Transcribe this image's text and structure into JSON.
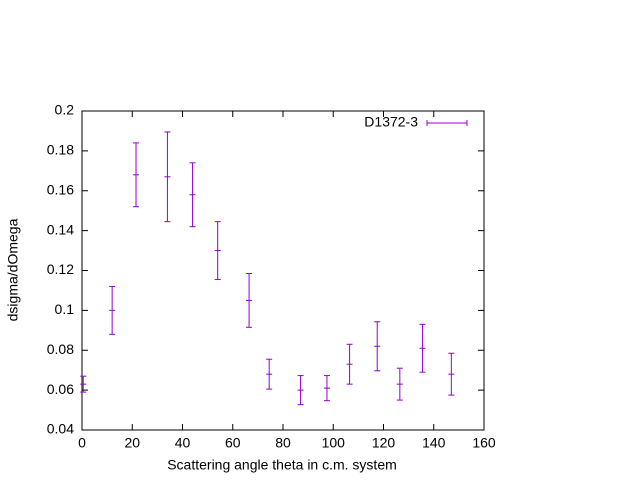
{
  "chart_data": {
    "type": "errorbar",
    "x_label": "Scattering angle theta in c.m. system",
    "y_label": "dsigma/dOmega",
    "x": [
      0.5,
      12,
      21.5,
      34,
      44,
      54,
      66.5,
      74.5,
      87,
      97.5,
      106.5,
      117.5,
      126.5,
      135.5,
      147
    ],
    "series": [
      {
        "name": "D1372-3",
        "color": "#9400d3",
        "values": [
          0.063,
          0.1,
          0.168,
          0.167,
          0.158,
          0.13,
          0.105,
          0.068,
          0.06,
          0.061,
          0.073,
          0.082,
          0.063,
          0.081,
          0.068
        ],
        "errors": [
          0.004,
          0.012,
          0.016,
          0.0225,
          0.016,
          0.0145,
          0.0135,
          0.0075,
          0.0073,
          0.0063,
          0.01,
          0.0123,
          0.008,
          0.012,
          0.0105
        ]
      }
    ],
    "xlim": [
      0,
      160
    ],
    "xticks": [
      0,
      20,
      40,
      60,
      80,
      100,
      120,
      140,
      160
    ],
    "ylim": [
      0.04,
      0.2
    ],
    "yticks": [
      0.04,
      0.06,
      0.08,
      0.1,
      0.12,
      0.14,
      0.16,
      0.18,
      0.2
    ],
    "legend": "top-right"
  }
}
